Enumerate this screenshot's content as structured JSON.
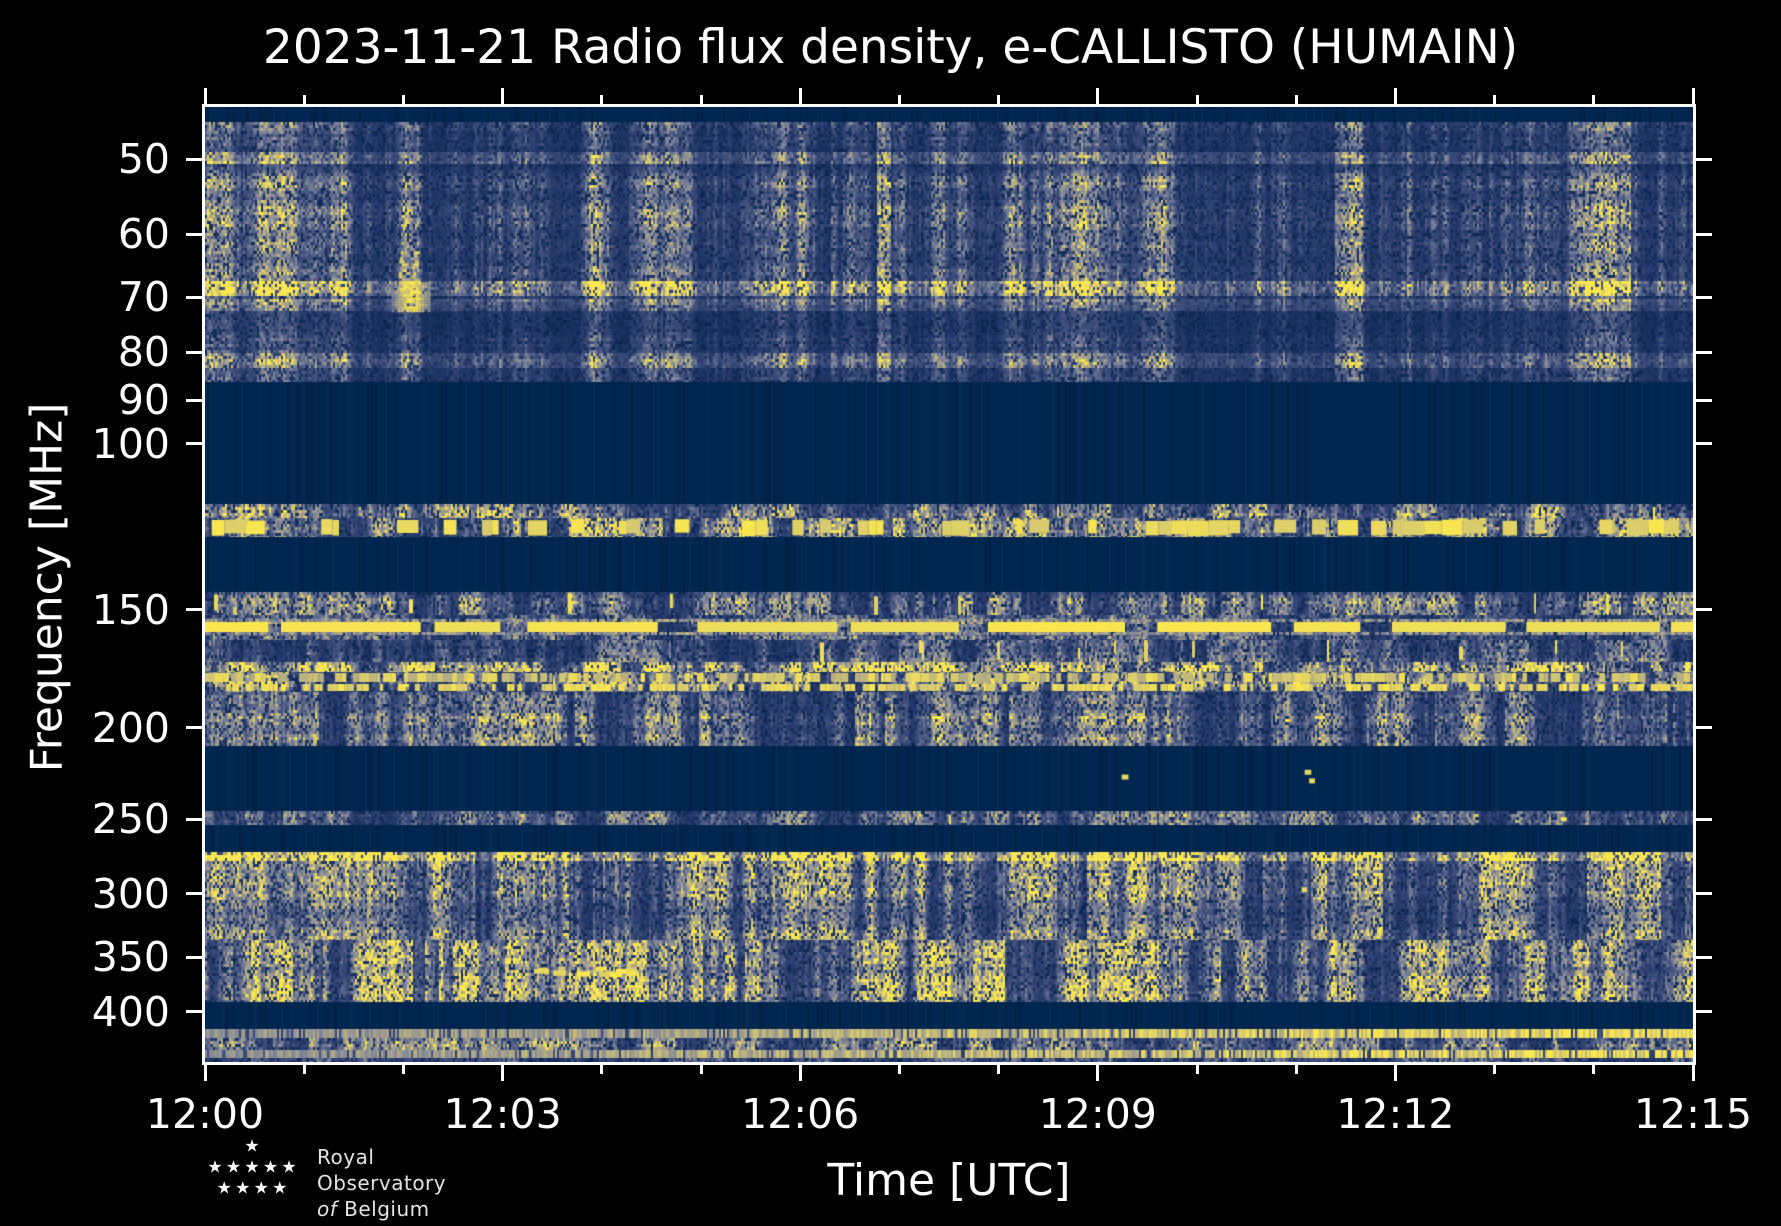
{
  "title": "2023-11-21 Radio flux density, e-CALLISTO (HUMAIN)",
  "axes": {
    "xlabel": "Time [UTC]",
    "ylabel": "Frequency [MHz]",
    "x_major_ticks": [
      "12:00",
      "12:03",
      "12:06",
      "12:09",
      "12:12",
      "12:15"
    ],
    "x_minor_steps_total": 15,
    "y_ticks": [
      50,
      60,
      70,
      80,
      90,
      100,
      150,
      200,
      250,
      300,
      350,
      400
    ],
    "y_scale": "log",
    "freq_min_mhz": 44,
    "freq_max_mhz": 452,
    "frame_color": "#ffffff",
    "tick_color": "#ffffff"
  },
  "logo": {
    "line1": "Royal Observatory",
    "line2_italic": "of",
    "line2": "Belgium",
    "star_rows": [
      1,
      5,
      4
    ]
  },
  "chart_data": {
    "type": "heatmap",
    "subtype": "radio-spectrogram",
    "title": "2023-11-21 Radio flux density, e-CALLISTO (HUMAIN)",
    "xlabel": "Time [UTC]",
    "ylabel": "Frequency [MHz]",
    "x_range": [
      "12:00",
      "12:15"
    ],
    "x_major_interval_min": 3,
    "x_minor_interval_min": 1,
    "y_scale": "log",
    "y_range_mhz": [
      44,
      452
    ],
    "legend": "none",
    "grid": "off",
    "colormap": {
      "stops": [
        [
          0.0,
          "#06234C"
        ],
        [
          0.25,
          "#283C6E"
        ],
        [
          0.45,
          "#4A5880"
        ],
        [
          0.62,
          "#7D849C"
        ],
        [
          0.78,
          "#ADA687"
        ],
        [
          0.9,
          "#D6C970"
        ],
        [
          1.0,
          "#FAE74F"
        ]
      ],
      "quiet_color": "#01264F"
    },
    "bands": [
      {
        "name": "quiet-top",
        "kind": "quiet",
        "y0": 0.0,
        "y1": 0.016,
        "f0_mhz": 44.0,
        "f1_mhz": 45.6
      },
      {
        "name": "noise-45-86",
        "kind": "noise",
        "y0": 0.016,
        "y1": 0.288,
        "f0_mhz": 45.6,
        "f1_mhz": 86.1,
        "level": 0.48,
        "tan_rows": [
          {
            "c": 0.054,
            "h": 0.006,
            "boost": 1.6
          },
          {
            "c": 0.19,
            "h": 0.008,
            "boost": 1.5
          },
          {
            "c": 0.208,
            "h": 0.006,
            "boost": 1.45
          },
          {
            "c": 0.265,
            "h": 0.008,
            "boost": 1.5
          }
        ]
      },
      {
        "name": "quiet-fm",
        "kind": "quiet",
        "y0": 0.288,
        "y1": 0.4157,
        "f0_mhz": 86.1,
        "f1_mhz": 115.9
      },
      {
        "name": "noise-118",
        "kind": "noise",
        "y0": 0.4157,
        "y1": 0.4304,
        "f0_mhz": 115.9,
        "f1_mhz": 119.9,
        "level": 0.56
      },
      {
        "name": "airband-line",
        "kind": "busyline",
        "y0": 0.4304,
        "y1": 0.4503,
        "f0_mhz": 119.9,
        "f1_mhz": 125.6,
        "level": 0.6
      },
      {
        "name": "quiet-135",
        "kind": "quiet",
        "y0": 0.4503,
        "y1": 0.5079,
        "f0_mhz": 125.6,
        "f1_mhz": 143.6
      },
      {
        "name": "noise-148",
        "kind": "noise",
        "y0": 0.5079,
        "y1": 0.532,
        "f0_mhz": 143.6,
        "f1_mhz": 151.9,
        "level": 0.46,
        "sparkle": 0.012
      },
      {
        "name": "line-156",
        "kind": "dashline",
        "y0": 0.532,
        "y1": 0.558,
        "f0_mhz": 151.9,
        "f1_mhz": 161.4
      },
      {
        "name": "noise-165",
        "kind": "noise",
        "y0": 0.558,
        "y1": 0.5812,
        "f0_mhz": 161.4,
        "f1_mhz": 170.3,
        "level": 0.45,
        "sparkle": 0.02
      },
      {
        "name": "gray-172",
        "kind": "noise",
        "y0": 0.5812,
        "y1": 0.5916,
        "f0_mhz": 170.3,
        "f1_mhz": 174.5,
        "level": 0.62
      },
      {
        "name": "dots-178",
        "kind": "dotline",
        "y0": 0.5916,
        "y1": 0.6126,
        "f0_mhz": 174.5,
        "f1_mhz": 183.3
      },
      {
        "name": "noise-195",
        "kind": "noise",
        "y0": 0.6126,
        "y1": 0.669,
        "f0_mhz": 183.3,
        "f1_mhz": 209.0,
        "level": 0.5
      },
      {
        "name": "quiet-225",
        "kind": "quiet",
        "y0": 0.669,
        "y1": 0.737,
        "f0_mhz": 209.0,
        "f1_mhz": 244.9
      },
      {
        "name": "noise-249",
        "kind": "noise",
        "y0": 0.737,
        "y1": 0.752,
        "f0_mhz": 244.9,
        "f1_mhz": 253.6,
        "level": 0.42,
        "sparkle": 0.004,
        "sparkle_right": 0.06
      },
      {
        "name": "quiet-262",
        "kind": "quiet",
        "y0": 0.752,
        "y1": 0.78,
        "f0_mhz": 253.6,
        "f1_mhz": 270.7
      },
      {
        "name": "noise-300",
        "kind": "noise",
        "y0": 0.78,
        "y1": 0.872,
        "f0_mhz": 270.7,
        "f1_mhz": 335.5,
        "level": 0.5,
        "tan_rows": [
          {
            "c": 0.784,
            "h": 0.005,
            "boost": 1.45
          }
        ]
      },
      {
        "name": "noise-365",
        "kind": "noise",
        "y0": 0.872,
        "y1": 0.937,
        "f0_mhz": 335.5,
        "f1_mhz": 390.3,
        "level": 0.55
      },
      {
        "name": "quiet-400",
        "kind": "quiet",
        "y0": 0.937,
        "y1": 0.9655,
        "f0_mhz": 390.3,
        "f1_mhz": 417.0
      },
      {
        "name": "row-421",
        "kind": "gradrow",
        "y0": 0.9655,
        "y1": 0.975,
        "f0_mhz": 417.0,
        "f1_mhz": 426.3
      },
      {
        "name": "noise-432",
        "kind": "noise",
        "y0": 0.975,
        "y1": 0.9874,
        "f0_mhz": 426.3,
        "f1_mhz": 438.9,
        "level": 0.45
      },
      {
        "name": "row-443",
        "kind": "gradrow",
        "y0": 0.9874,
        "y1": 0.9958,
        "f0_mhz": 438.9,
        "f1_mhz": 447.5
      },
      {
        "name": "noise-450",
        "kind": "noise",
        "y0": 0.9958,
        "y1": 1.0,
        "f0_mhz": 447.5,
        "f1_mhz": 451.9,
        "level": 0.42
      }
    ],
    "events": [
      {
        "kind": "burst",
        "x0": 0.128,
        "x1": 0.148,
        "y0": 0.148,
        "y1": 0.212,
        "desc": "bright burst near 12:02 at 65-80 MHz"
      },
      {
        "kind": "speckles",
        "x0": 0.218,
        "x1": 0.288,
        "y0": 0.896,
        "y1": 0.912,
        "n": 16,
        "desc": "yellow speckles near 12:03 at ~350 MHz"
      },
      {
        "kind": "dots",
        "points": [
          [
            0.739,
            0.694
          ],
          [
            0.616,
            0.699
          ],
          [
            0.742,
            0.703
          ],
          [
            0.737,
            0.817
          ]
        ],
        "desc": "isolated yellow dots"
      }
    ]
  }
}
